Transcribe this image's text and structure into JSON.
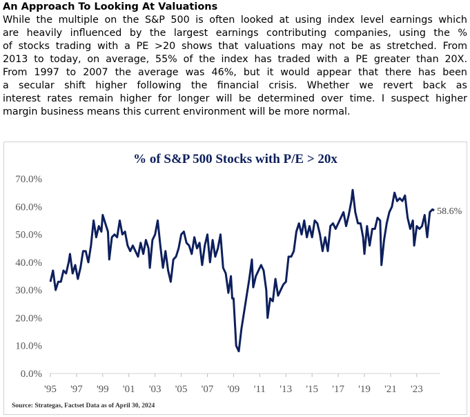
{
  "document": {
    "title": "An Approach To Looking At Valuations",
    "body_lines": [
      "While the multiple on the S&P 500 is often looked at using index level earnings which",
      "are heavily influenced by the largest earnings contributing companies, using the %",
      "of stocks trading with a PE >20 shows that valuations may not be as stretched. From",
      "2013 to today, on average, 55% of the index has traded with a PE greater than 20X.",
      "From 1997 to 2007 the average was 46%, but it would appear that there has been",
      "a secular shift higher following the financial crisis. Whether we revert back as",
      "interest rates remain higher for longer will be determined over time. I suspect higher",
      "margin business means this current environment will be more normal."
    ]
  },
  "chart_data": {
    "type": "line",
    "title": "% of S&P 500 Stocks with P/E > 20x",
    "source": "Source: Strategas, Factset Data as of April 30, 2024",
    "ylim": [
      0,
      70
    ],
    "yticks": [
      "0.0%",
      "10.0%",
      "20.0%",
      "30.0%",
      "40.0%",
      "50.0%",
      "60.0%",
      "70.0%"
    ],
    "xticks": [
      "'95",
      "'97",
      "'99",
      "'01",
      "'03",
      "'05",
      "'07",
      "'09",
      "'11",
      "'13",
      "'15",
      "'17",
      "'19",
      "'21",
      "'23"
    ],
    "xlim": [
      1995,
      2024.6
    ],
    "grid": false,
    "line_color": "#0d1f5c",
    "last_value_label": "58.6%",
    "series": [
      {
        "x": [
          1995.0,
          1995.2,
          1995.4,
          1995.6,
          1995.8,
          1996.0,
          1996.2,
          1996.4,
          1996.5,
          1996.7,
          1996.9,
          1997.1,
          1997.3,
          1997.5,
          1997.7,
          1997.9,
          1998.1,
          1998.3,
          1998.5,
          1998.7,
          1998.9,
          1999.0,
          1999.2,
          1999.4,
          1999.5,
          1999.7,
          1999.9,
          2000.1,
          2000.3,
          2000.5,
          2000.7,
          2000.9,
          2001.1,
          2001.3,
          2001.5,
          2001.7,
          2001.9,
          2002.1,
          2002.3,
          2002.5,
          2002.6,
          2002.8,
          2003.0,
          2003.2,
          2003.4,
          2003.6,
          2003.8,
          2004.0,
          2004.2,
          2004.4,
          2004.6,
          2004.8,
          2005.0,
          2005.2,
          2005.4,
          2005.6,
          2005.8,
          2006.0,
          2006.2,
          2006.4,
          2006.6,
          2006.8,
          2007.0,
          2007.2,
          2007.4,
          2007.6,
          2007.8,
          2008.0,
          2008.2,
          2008.4,
          2008.6,
          2008.8,
          2008.9,
          2009.0,
          2009.2,
          2009.4,
          2009.6,
          2009.8,
          2010.0,
          2010.2,
          2010.4,
          2010.5,
          2010.7,
          2010.9,
          2011.1,
          2011.3,
          2011.5,
          2011.6,
          2011.8,
          2012.0,
          2012.2,
          2012.4,
          2012.6,
          2012.8,
          2013.0,
          2013.2,
          2013.4,
          2013.6,
          2013.8,
          2014.0,
          2014.2,
          2014.4,
          2014.6,
          2014.8,
          2015.0,
          2015.2,
          2015.4,
          2015.6,
          2015.8,
          2016.0,
          2016.2,
          2016.4,
          2016.6,
          2016.8,
          2017.0,
          2017.2,
          2017.4,
          2017.6,
          2017.8,
          2018.0,
          2018.1,
          2018.3,
          2018.5,
          2018.7,
          2018.9,
          2019.0,
          2019.2,
          2019.4,
          2019.6,
          2019.8,
          2020.0,
          2020.2,
          2020.3,
          2020.5,
          2020.7,
          2020.9,
          2021.1,
          2021.3,
          2021.5,
          2021.7,
          2021.9,
          2022.1,
          2022.3,
          2022.5,
          2022.7,
          2022.8,
          2023.0,
          2023.2,
          2023.4,
          2023.6,
          2023.8,
          2024.0,
          2024.2,
          2024.33
        ],
        "y": [
          33,
          37,
          30,
          33,
          33,
          37,
          36,
          40,
          43,
          36,
          39,
          34,
          38,
          44,
          44,
          40,
          46,
          55,
          49,
          53,
          51,
          57,
          54,
          51,
          41,
          49,
          50,
          49,
          55,
          50,
          51,
          46,
          44,
          46,
          44,
          42,
          47,
          43,
          48,
          45,
          38,
          48,
          50,
          55,
          46,
          38,
          44,
          37,
          33,
          41,
          42,
          45,
          50,
          51,
          47,
          46,
          43,
          49,
          45,
          47,
          39,
          46,
          50,
          40,
          48,
          42,
          45,
          50,
          38,
          36,
          29,
          35,
          27,
          27,
          10,
          8,
          16,
          22,
          28,
          34,
          41,
          31,
          35,
          37,
          39,
          37,
          30,
          20,
          27,
          26,
          34,
          28,
          30,
          32,
          33,
          42,
          42,
          44,
          51,
          54,
          50,
          55,
          49,
          53,
          49,
          55,
          54,
          50,
          44,
          49,
          44,
          53,
          54,
          52,
          54,
          56,
          58,
          53,
          57,
          62,
          66,
          58,
          54,
          54,
          49,
          43,
          53,
          46,
          52,
          52,
          56,
          55,
          39,
          48,
          54,
          58,
          60,
          65,
          62,
          63,
          62,
          64,
          56,
          52,
          55,
          46,
          53,
          52,
          53,
          57,
          49,
          58,
          59,
          58.6
        ]
      }
    ]
  }
}
